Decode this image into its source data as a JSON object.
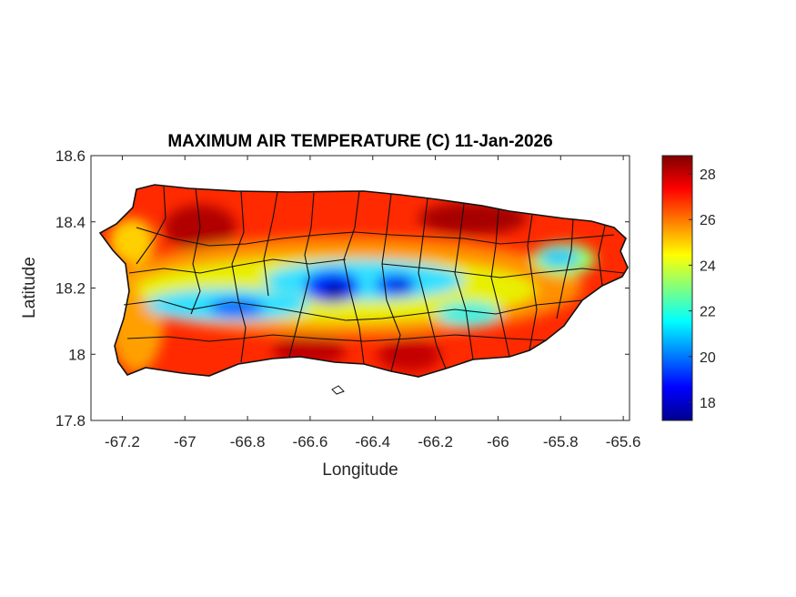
{
  "chart_data": {
    "type": "heatmap",
    "title": "MAXIMUM AIR TEMPERATURE (C) 11-Jan-2026",
    "xlabel": "Longitude",
    "ylabel": "Latitude",
    "xlim": [
      -67.3,
      -65.58
    ],
    "ylim": [
      17.8,
      18.6
    ],
    "x_ticks": [
      -67.2,
      -67,
      -66.8,
      -66.6,
      -66.4,
      -66.2,
      -66,
      -65.8,
      -65.6
    ],
    "x_tick_labels": [
      "-67.2",
      "-67",
      "-66.8",
      "-66.6",
      "-66.4",
      "-66.2",
      "-66",
      "-65.8",
      "-65.6"
    ],
    "y_ticks": [
      18.6,
      18.4,
      18.2,
      18
    ],
    "y_tick_labels": [
      "18.6",
      "18.4",
      "18.2",
      "18"
    ],
    "colorbar": {
      "range": [
        17.2,
        28.8
      ],
      "ticks": [
        18,
        20,
        22,
        24,
        26,
        28
      ],
      "tick_labels": [
        "18",
        "20",
        "22",
        "24",
        "26",
        "28"
      ],
      "colormap": "jet"
    },
    "grid": false,
    "hotspots": [
      {
        "lon": -66.55,
        "lat": 18.18,
        "value": 17.5
      },
      {
        "lon": -66.33,
        "lat": 18.2,
        "value": 18.5
      },
      {
        "lon": -66.83,
        "lat": 18.15,
        "value": 20.5
      },
      {
        "lon": -66.65,
        "lat": 18.25,
        "value": 21.5
      },
      {
        "lon": -66.2,
        "lat": 18.17,
        "value": 22.0
      },
      {
        "lon": -65.8,
        "lat": 18.3,
        "value": 22.0
      },
      {
        "lon": -67.12,
        "lat": 18.19,
        "value": 24.0
      },
      {
        "lon": -66.97,
        "lat": 18.38,
        "value": 28.5
      },
      {
        "lon": -66.1,
        "lat": 18.43,
        "value": 28.5
      },
      {
        "lon": -66.42,
        "lat": 18.05,
        "value": 28.0
      },
      {
        "lon": -66.62,
        "lat": 18.03,
        "value": 28.0
      },
      {
        "lon": -65.92,
        "lat": 18.03,
        "value": 27.5
      }
    ]
  }
}
